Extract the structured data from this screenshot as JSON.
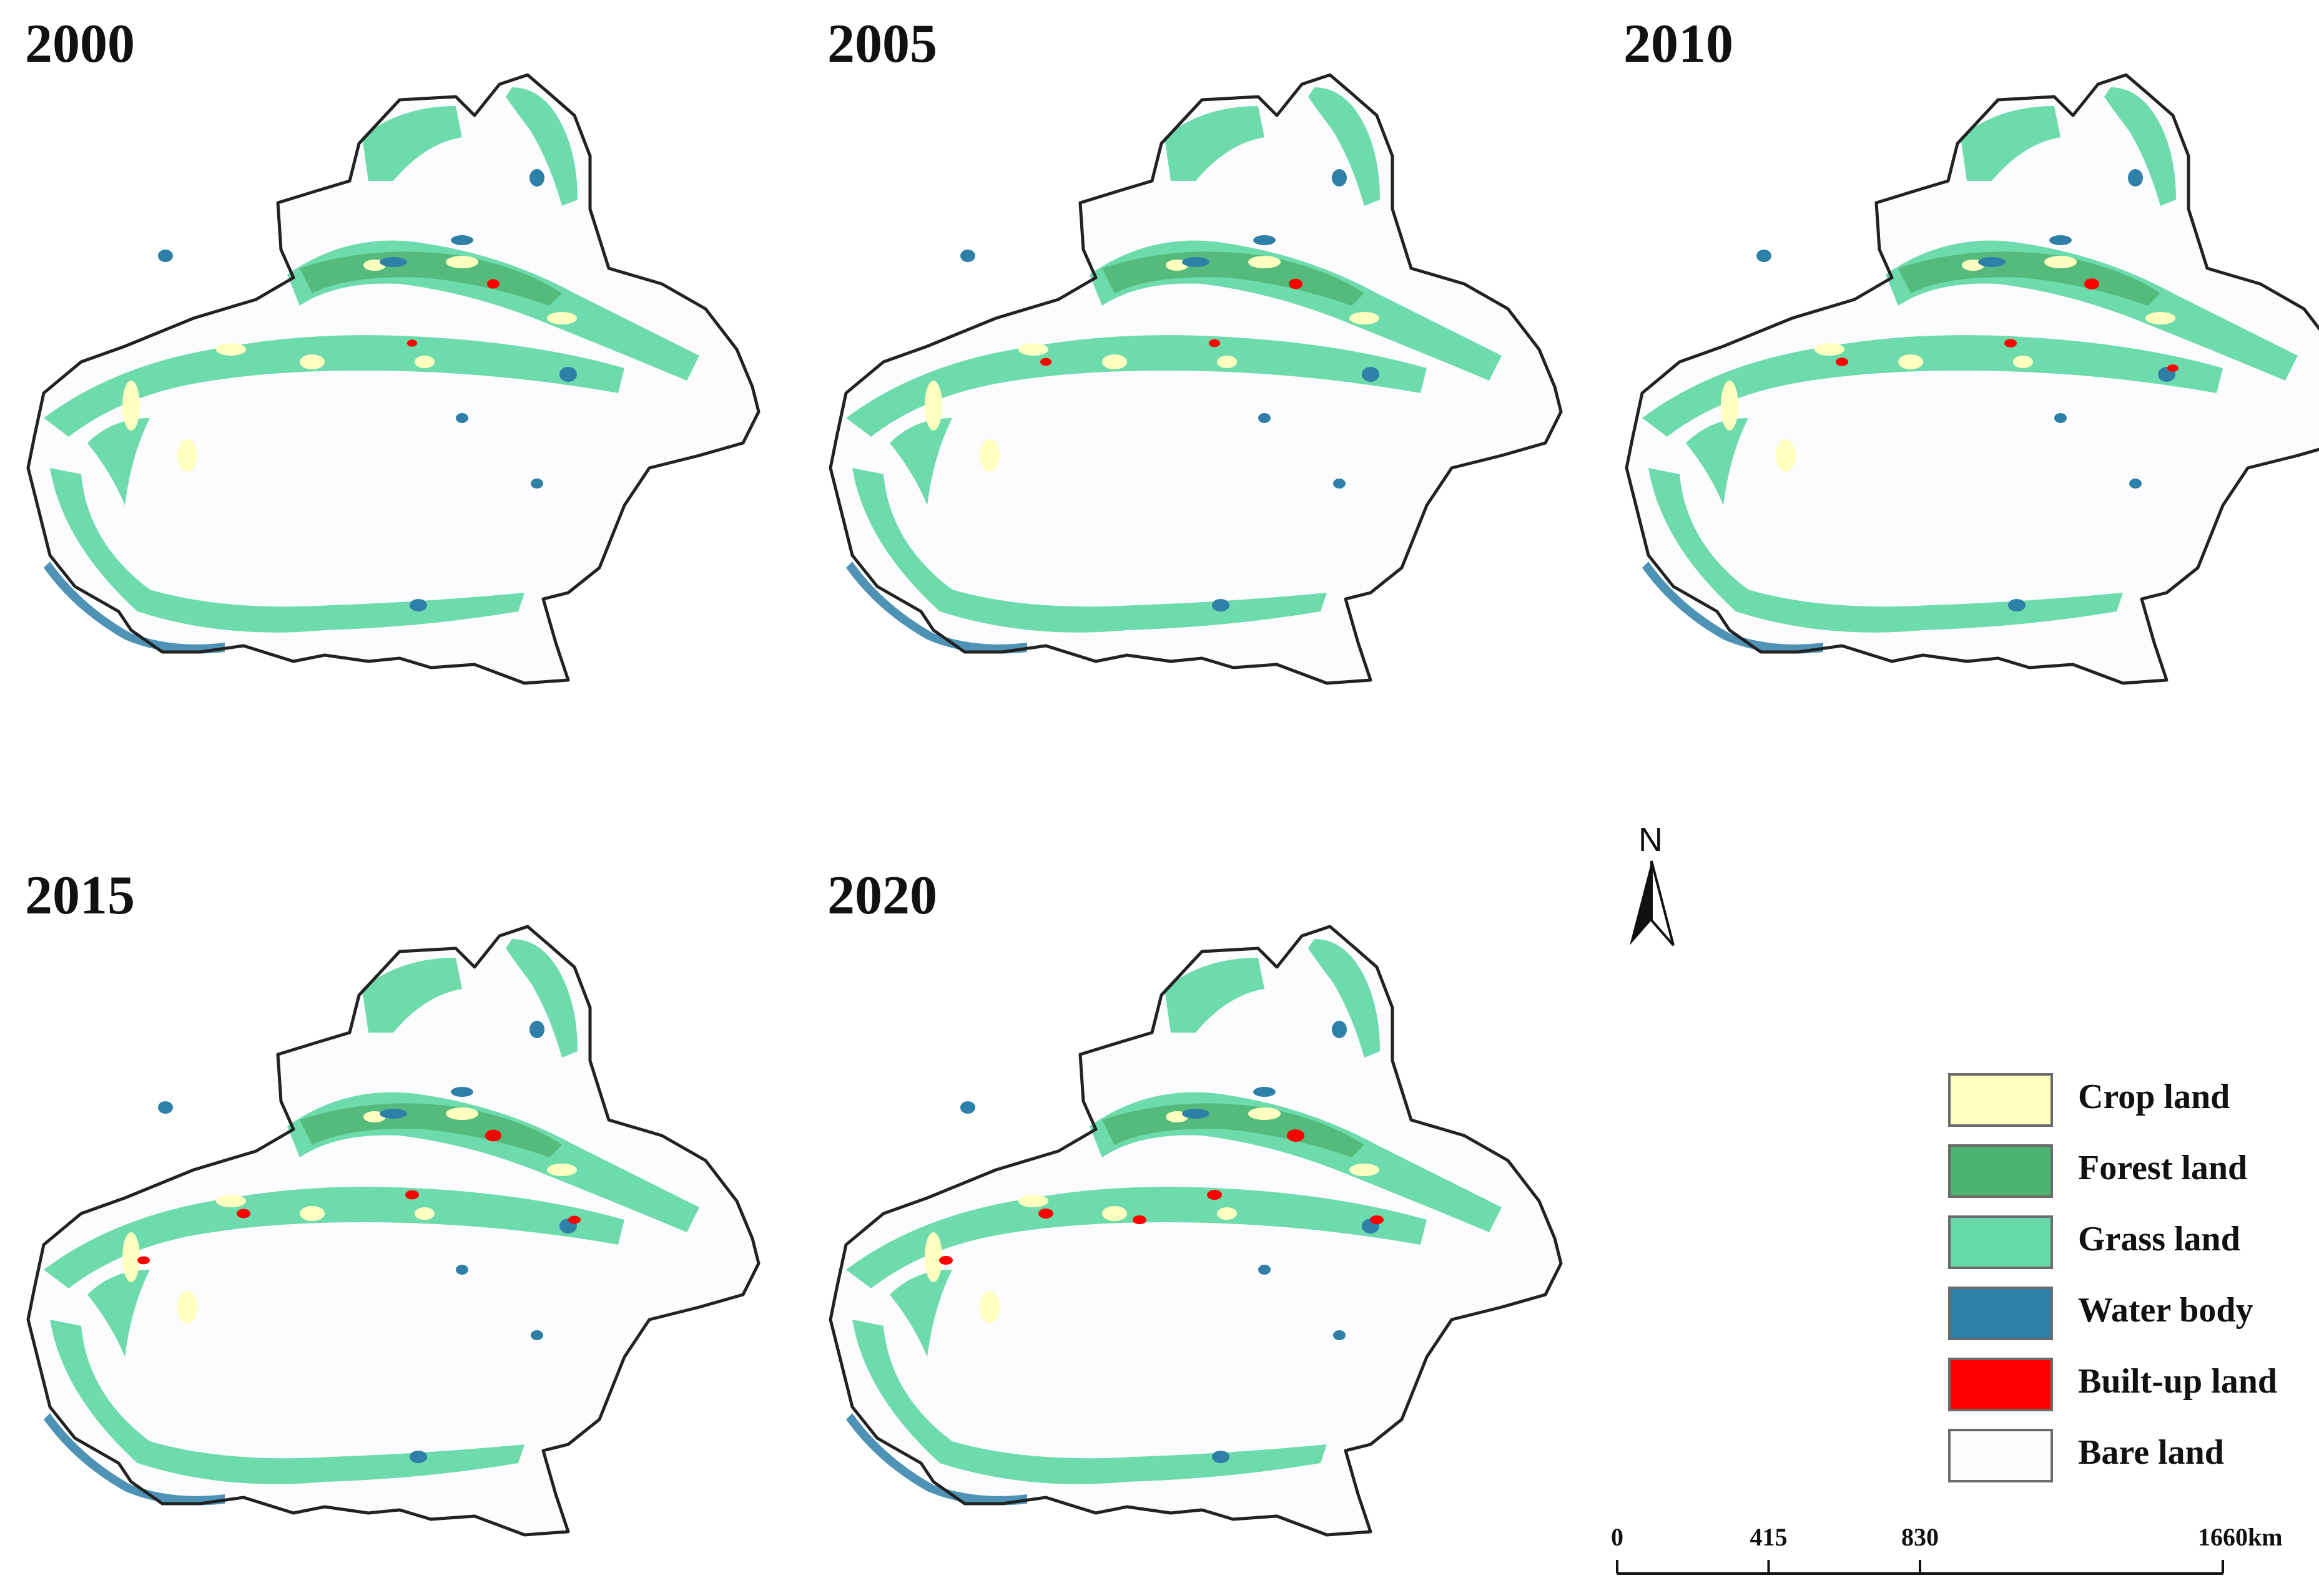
{
  "panels": [
    {
      "year": "2000",
      "builtup_level": 1
    },
    {
      "year": "2005",
      "builtup_level": 2
    },
    {
      "year": "2010",
      "builtup_level": 3
    },
    {
      "year": "2015",
      "builtup_level": 4
    },
    {
      "year": "2020",
      "builtup_level": 5
    }
  ],
  "north_arrow": {
    "label": "N"
  },
  "legend": {
    "items": [
      {
        "label": "Crop land",
        "color": "#ffffbf"
      },
      {
        "label": "Forest land",
        "color": "#4db371"
      },
      {
        "label": "Grass land",
        "color": "#66d9a8"
      },
      {
        "label": "Water body",
        "color": "#2f80a8"
      },
      {
        "label": "Built-up land",
        "color": "#ff0000"
      },
      {
        "label": "Bare land",
        "color": "#fcfcfe"
      }
    ]
  },
  "scale_bar": {
    "ticks": [
      "0",
      "415",
      "830",
      "1660"
    ],
    "tick_values": [
      0,
      415,
      830,
      1660
    ],
    "unit": "km"
  },
  "colors": {
    "outline": "#222222",
    "crop": "#ffffbf",
    "forest": "#4db371",
    "grass": "#66d9a8",
    "water": "#2f80a8",
    "builtup": "#ff0000",
    "bare": "#fcfcfe"
  }
}
